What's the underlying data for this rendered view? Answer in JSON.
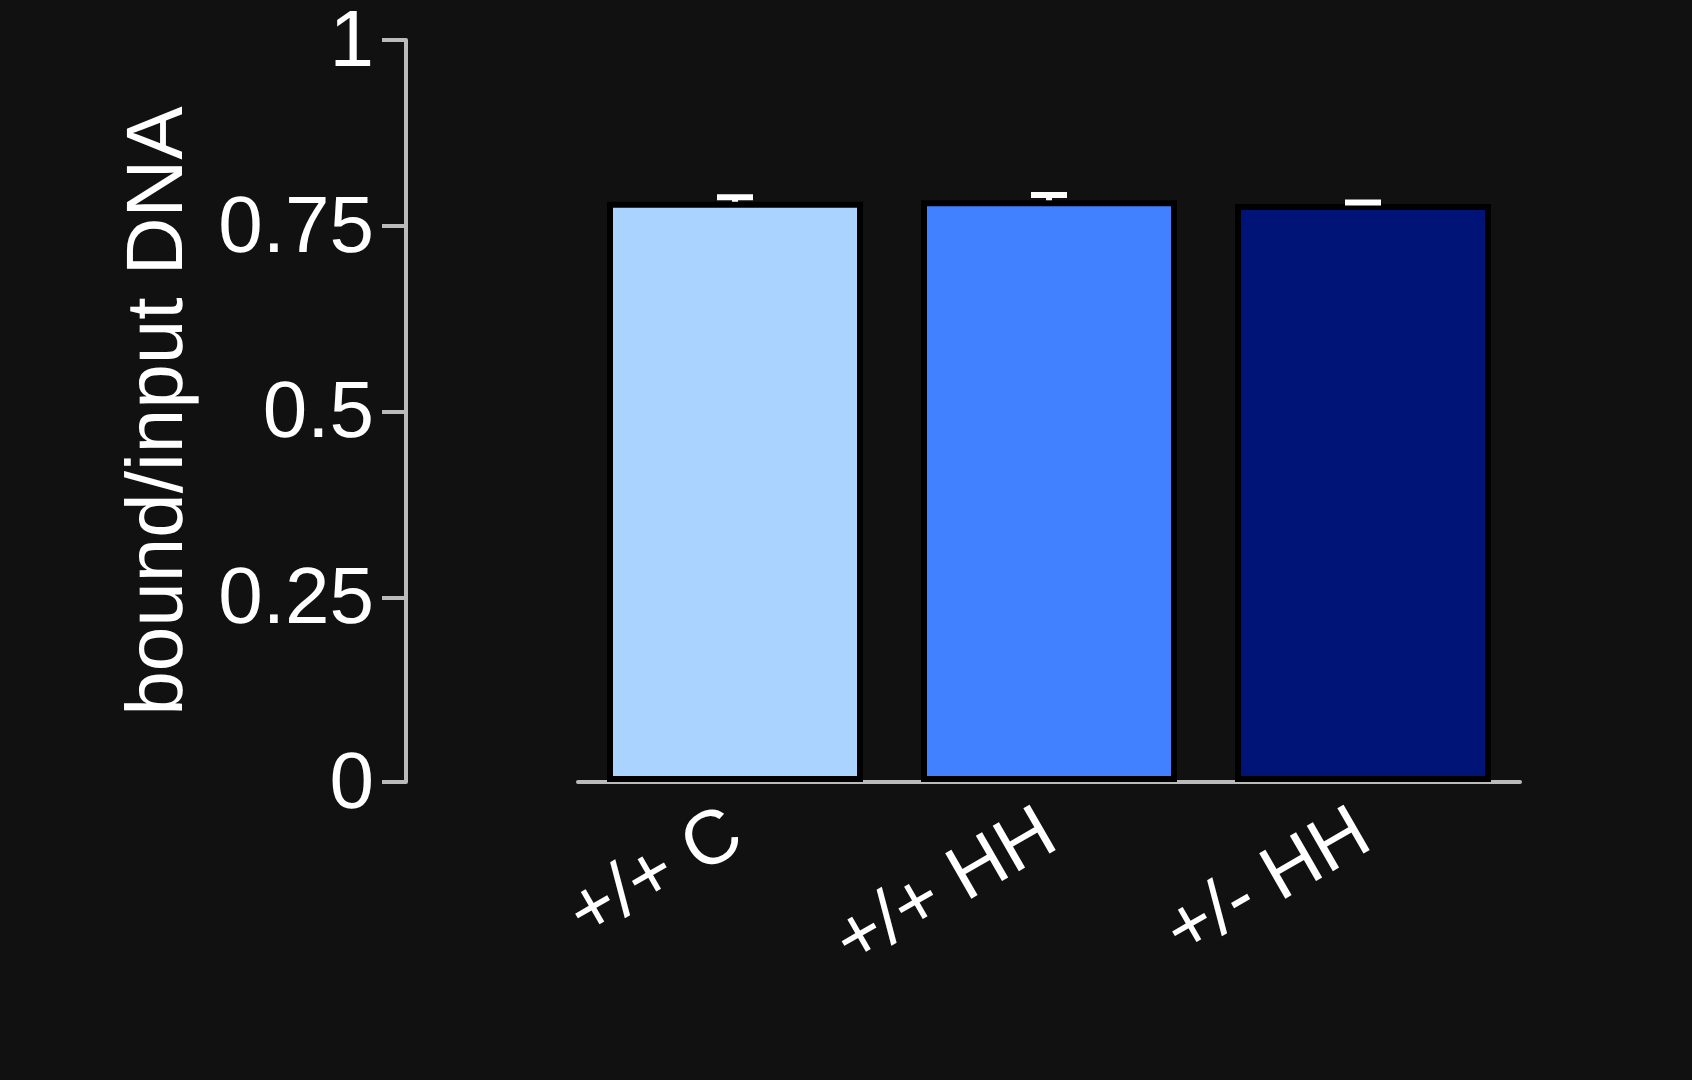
{
  "chart_data": {
    "type": "bar",
    "ylabel": "bound/input DNA",
    "categories": [
      "+/+ C",
      "+/+ HH",
      "+/- HH"
    ],
    "values": [
      0.782,
      0.784,
      0.779
    ],
    "colors": [
      "#aad4ff",
      "#4181ff",
      "#001478"
    ],
    "errors": [
      0.006,
      0.007,
      0.002
    ],
    "ylim": [
      0,
      1
    ],
    "yticks": [
      0,
      0.25,
      0.5,
      0.75,
      1
    ]
  }
}
